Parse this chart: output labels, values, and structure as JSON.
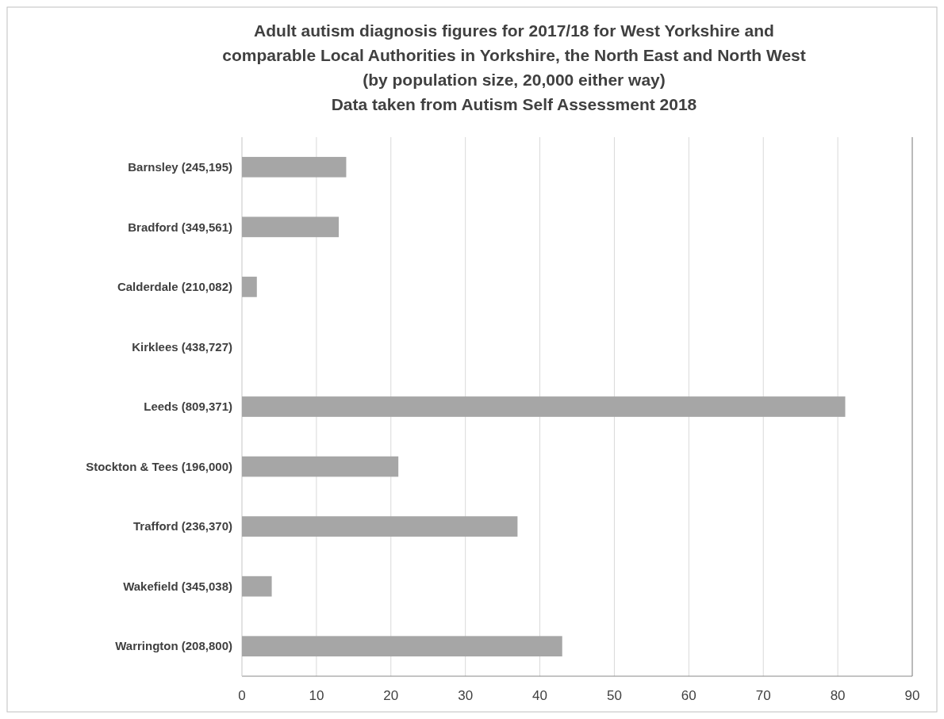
{
  "chart_data": {
    "type": "bar",
    "orientation": "horizontal",
    "title": "Adult autism diagnosis figures for 2017/18 for West Yorkshire and\ncomparable Local Authorities in Yorkshire, the North East and North West\n(by population size, 20,000 either way)\nData taken from Autism Self Assessment 2018",
    "categories": [
      "Barnsley (245,195)",
      "Bradford (349,561)",
      "Calderdale (210,082)",
      "Kirklees (438,727)",
      "Leeds (809,371)",
      "Stockton & Tees (196,000)",
      "Trafford (236,370)",
      "Wakefield (345,038)",
      "Warrington (208,800)"
    ],
    "values": [
      14,
      13,
      2,
      null,
      81,
      21,
      37,
      4,
      43
    ],
    "color": "#a6a6a6",
    "xlim": [
      0,
      90
    ],
    "xticks": [
      0,
      10,
      20,
      30,
      40,
      50,
      60,
      70,
      80,
      90
    ],
    "grid": "x"
  }
}
